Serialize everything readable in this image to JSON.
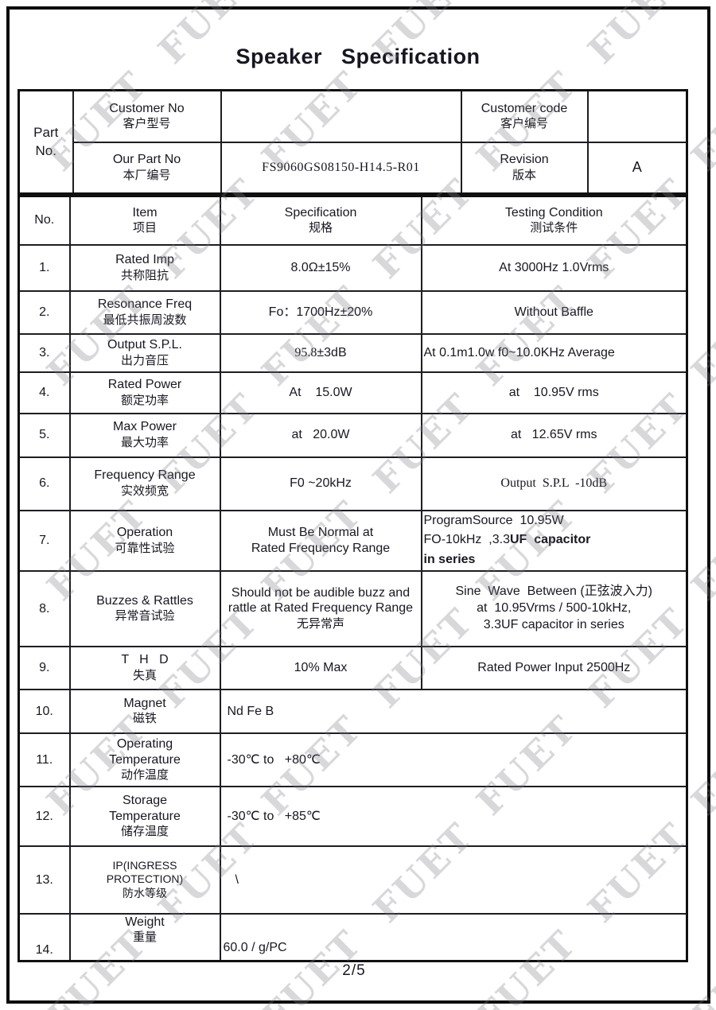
{
  "title": "Speaker   Specification",
  "watermark": "FUET",
  "footer": {
    "page_indicator": "2/5"
  },
  "part_section": {
    "part_no_label": "Part No.",
    "customer_no": {
      "en": "Customer No",
      "cn": "客户型号",
      "value": ""
    },
    "customer_code": {
      "en": "Customer code",
      "cn": "客户编号",
      "value": ""
    },
    "our_part_no": {
      "en": "Our Part No",
      "cn": "本厂编号",
      "value": "FS9060GS08150-H14.5-R01"
    },
    "revision": {
      "en": "Revision",
      "cn": "版本",
      "value": "A"
    }
  },
  "table": {
    "headers": {
      "no": "No.",
      "item_en": "Item",
      "item_cn": "项目",
      "spec_en": "Specification",
      "spec_cn": "规格",
      "test_en": "Testing Condition",
      "test_cn": "测试条件"
    },
    "rows": [
      {
        "no": "1.",
        "item_en": "Rated Imp",
        "item_cn": "共称阻抗",
        "spec": "8.0Ω±15%",
        "test": "At 3000Hz 1.0Vrms"
      },
      {
        "no": "2.",
        "item_en": "Resonance Freq",
        "item_cn": "最低共振周波数",
        "spec": "Fo：1700Hz±20%",
        "test": "Without Baffle"
      },
      {
        "no": "3.",
        "item_en": "Output S.P.L.",
        "item_cn": "出力音压",
        "spec_serif": "95.8",
        "spec_rest": "±3dB",
        "test": "At 0.1m1.0w f0~10.0KHz Average"
      },
      {
        "no": "4.",
        "item_en": "Rated Power",
        "item_cn": "额定功率",
        "spec": "At    15.0W",
        "test": "at    10.95V rms"
      },
      {
        "no": "5.",
        "item_en": "Max Power",
        "item_cn": "最大功率",
        "spec": "at   20.0W",
        "test": "at   12.65V rms"
      },
      {
        "no": "6.",
        "item_en": "Frequency Range",
        "item_cn": "实效频宽",
        "spec": "F0 ~20kHz",
        "test": "Output  S.P.L  -10dB"
      },
      {
        "no": "7.",
        "item_en": "Operation",
        "item_cn": "可靠性试验",
        "spec_l1": "Must Be Normal at",
        "spec_l2": "Rated Frequency Range",
        "test_l1": "ProgramSource  10.95W",
        "test_l2a": "FO-10kHz  ,3.3",
        "test_l2b": "UF  capacitor",
        "test_l3": "in series"
      },
      {
        "no": "8.",
        "item_en": "Buzzes & Rattles",
        "item_cn": "异常音试验",
        "spec_en": "Should not be audible buzz and rattle at Rated Frequency Range",
        "spec_cn": "无异常声",
        "test_l1": "Sine  Wave  Between (正弦波入力)",
        "test_l2": "at  10.95Vrms / 500-10kHz,",
        "test_l3": "3.3UF capacitor in series"
      },
      {
        "no": "9.",
        "item_en": "T   H   D",
        "item_cn": "失真",
        "spec": "10% Max",
        "test": "Rated Power Input 2500Hz"
      },
      {
        "no": "10.",
        "item_en": "Magnet",
        "item_cn": "磁铁",
        "value": "Nd Fe B"
      },
      {
        "no": "11.",
        "item_en": "Operating\nTemperature",
        "item_cn": "动作温度",
        "value": "-30℃ to   +80℃"
      },
      {
        "no": "12.",
        "item_en": "Storage\nTemperature",
        "item_cn": "储存温度",
        "value": "-30℃ to   +85℃"
      },
      {
        "no": "13.",
        "item_en": "IP(INGRESS\nPROTECTION)",
        "item_cn": "防水等级",
        "value": "\\"
      },
      {
        "no": "14.",
        "item_en": "Weight",
        "item_cn": "重量",
        "value": "60.0 / g/PC"
      }
    ]
  }
}
